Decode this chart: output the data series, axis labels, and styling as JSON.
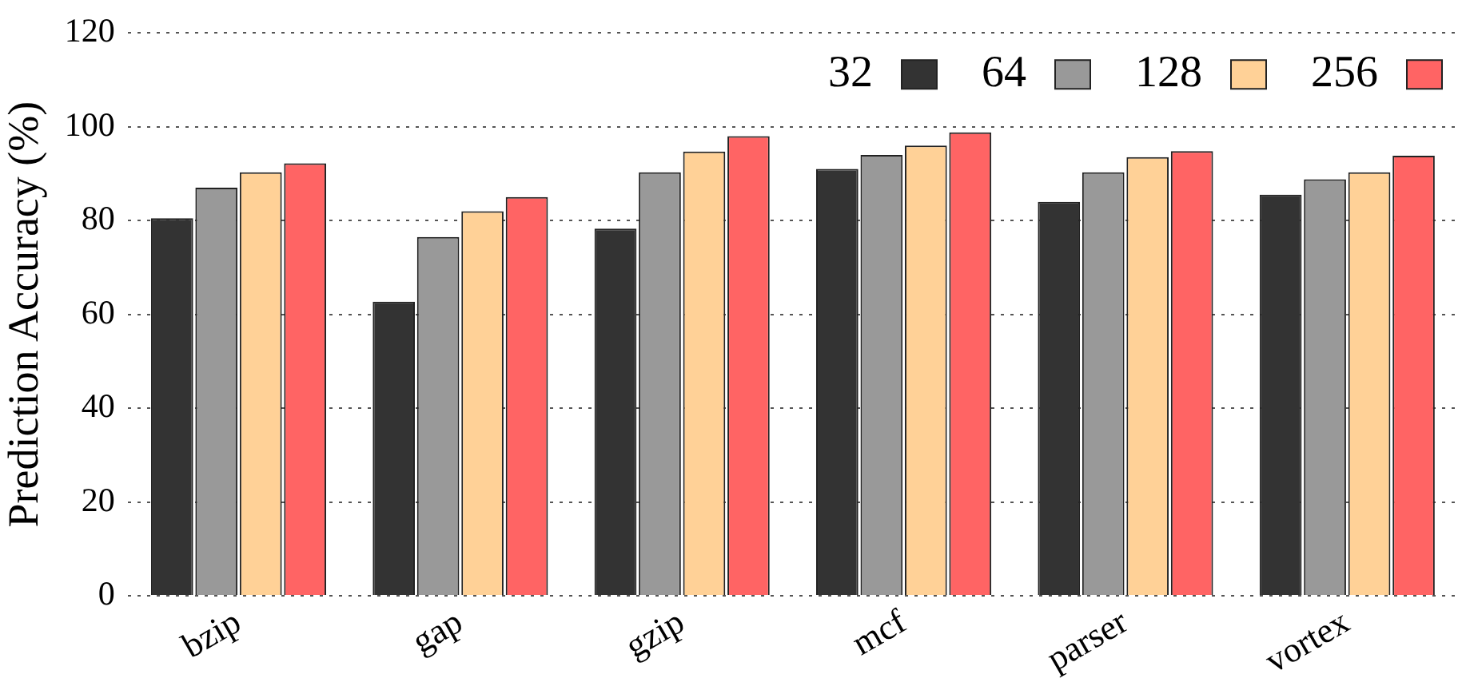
{
  "chart_data": {
    "type": "bar",
    "ylabel": "Prediction Accuracy (%)",
    "categories": [
      "bzip",
      "gap",
      "gzip",
      "mcf",
      "parser",
      "vortex"
    ],
    "series": [
      {
        "name": "32",
        "color": "#333333",
        "values": [
          80.5,
          62.7,
          78.3,
          91,
          84,
          85.5
        ]
      },
      {
        "name": "64",
        "color": "#999999",
        "values": [
          87,
          76.5,
          90.3,
          94,
          90.3,
          88.8
        ]
      },
      {
        "name": "128",
        "color": "#ffd197",
        "values": [
          90.3,
          82,
          94.7,
          96,
          93.5,
          90.3
        ]
      },
      {
        "name": "256",
        "color": "#ff6464",
        "values": [
          92.2,
          85,
          98,
          98.8,
          94.8,
          93.8
        ]
      }
    ],
    "ylim": [
      0,
      120
    ],
    "yticks": [
      0,
      20,
      40,
      60,
      80,
      100,
      120
    ],
    "grid": "y",
    "legend": "top right"
  }
}
